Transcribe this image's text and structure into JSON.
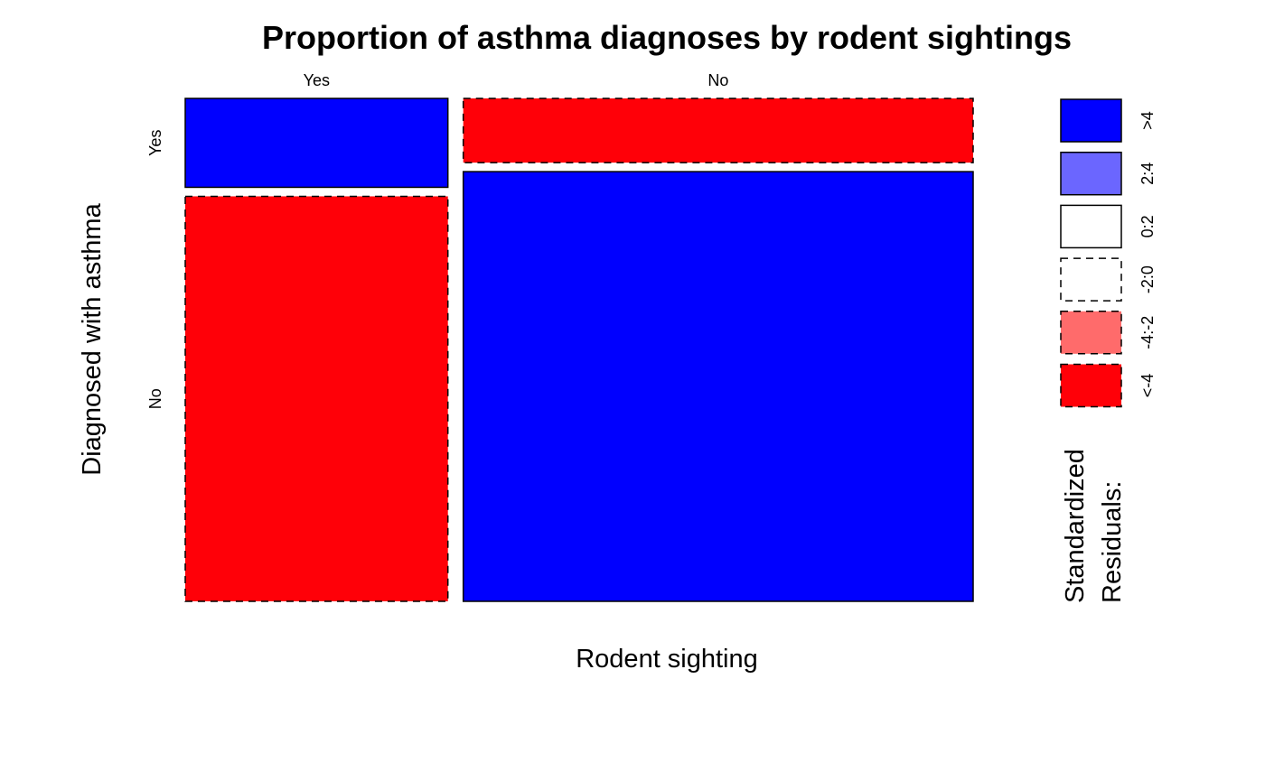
{
  "chart_data": {
    "type": "mosaic",
    "title": "Proportion of asthma diagnoses by rodent sightings",
    "xlabel": "Rodent sighting",
    "ylabel": "Diagnosed with asthma",
    "x_categories": [
      "Yes",
      "No"
    ],
    "y_categories": [
      "Yes",
      "No"
    ],
    "x_proportions": [
      0.34,
      0.66
    ],
    "y_proportions_within_x": {
      "Yes": [
        0.18,
        0.82
      ],
      "No": [
        0.13,
        0.87
      ]
    },
    "cells": [
      {
        "x": "Yes",
        "y": "Yes",
        "residual_class": ">4"
      },
      {
        "x": "Yes",
        "y": "No",
        "residual_class": "<-4"
      },
      {
        "x": "No",
        "y": "Yes",
        "residual_class": "<-4"
      },
      {
        "x": "No",
        "y": "No",
        "residual_class": ">4"
      }
    ],
    "legend": {
      "title_lines": [
        "Standardized",
        "Residuals:"
      ],
      "placement": "right",
      "entries": [
        {
          "label": ">4",
          "color": "#0000ff",
          "dashed": false
        },
        {
          "label": "2:4",
          "color": "#6b66ff",
          "dashed": false
        },
        {
          "label": "0:2",
          "color": "#ffffff",
          "dashed": false
        },
        {
          "label": "-2:0",
          "color": "#ffffff",
          "dashed": true
        },
        {
          "label": "-4:-2",
          "color": "#ff6b6b",
          "dashed": true
        },
        {
          "label": "<-4",
          "color": "#ff0008",
          "dashed": true
        }
      ]
    }
  }
}
